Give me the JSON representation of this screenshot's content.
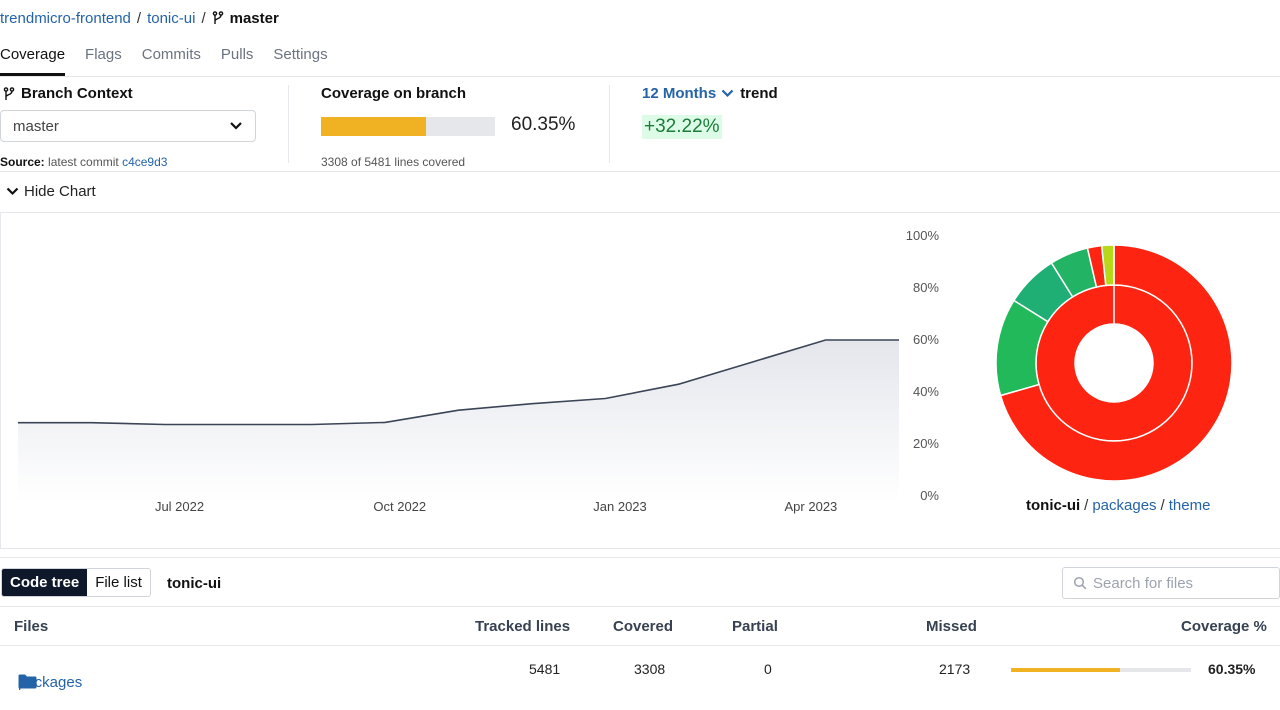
{
  "breadcrumb": {
    "org": "trendmicro-frontend",
    "repo": "tonic-ui",
    "sep": "/",
    "branch": "master"
  },
  "tabs": [
    {
      "label": "Coverage",
      "active": true
    },
    {
      "label": "Flags",
      "active": false
    },
    {
      "label": "Commits",
      "active": false
    },
    {
      "label": "Pulls",
      "active": false
    },
    {
      "label": "Settings",
      "active": false
    }
  ],
  "branch_context": {
    "title": "Branch Context",
    "selected": "master",
    "source_label": "Source:",
    "source_text": "latest commit",
    "commit": "c4ce9d3"
  },
  "coverage_branch": {
    "title": "Coverage on branch",
    "percent_text": "60.35%",
    "fraction": 0.6035,
    "lines_text": "3308 of 5481 lines covered"
  },
  "trend": {
    "period": "12 Months",
    "label": "trend",
    "change": "+32.22%"
  },
  "hide_chart_label": "Hide Chart",
  "chart_data": {
    "type": "area",
    "y_ticks": [
      "100%",
      "80%",
      "60%",
      "40%",
      "20%",
      "0%"
    ],
    "ylim": [
      0,
      100
    ],
    "x_tick_labels": [
      "Jul 2022",
      "Oct 2022",
      "Jan 2023",
      "Apr 2023"
    ],
    "series": [
      {
        "name": "coverage",
        "values": [
          28.2,
          28.2,
          27.5,
          27.5,
          27.5,
          28.3,
          33.0,
          35.5,
          37.5,
          43.0,
          51.5,
          60.0,
          60.0
        ]
      }
    ],
    "x_tick_index": [
      2.2,
      5.2,
      8.2,
      10.8
    ]
  },
  "sunburst": {
    "colors": {
      "red": "#fd2411",
      "green1": "#21b95a",
      "green2": "#1fae73",
      "green3": "#22b464",
      "lime": "#b6d819"
    },
    "root": "tonic-ui",
    "crumbs": [
      "packages",
      "theme"
    ],
    "sep": "/"
  },
  "toolbar": {
    "code_tree": "Code tree",
    "file_list": "File list",
    "current": "tonic-ui",
    "search_placeholder": "Search for files"
  },
  "table": {
    "headers": {
      "files": "Files",
      "tracked": "Tracked lines",
      "covered": "Covered",
      "partial": "Partial",
      "missed": "Missed",
      "coverage": "Coverage %"
    },
    "rows": [
      {
        "name": "packages",
        "tracked": "5481",
        "covered": "3308",
        "partial": "0",
        "missed": "2173",
        "coverage": "60.35%",
        "fraction": 0.6035
      }
    ]
  }
}
